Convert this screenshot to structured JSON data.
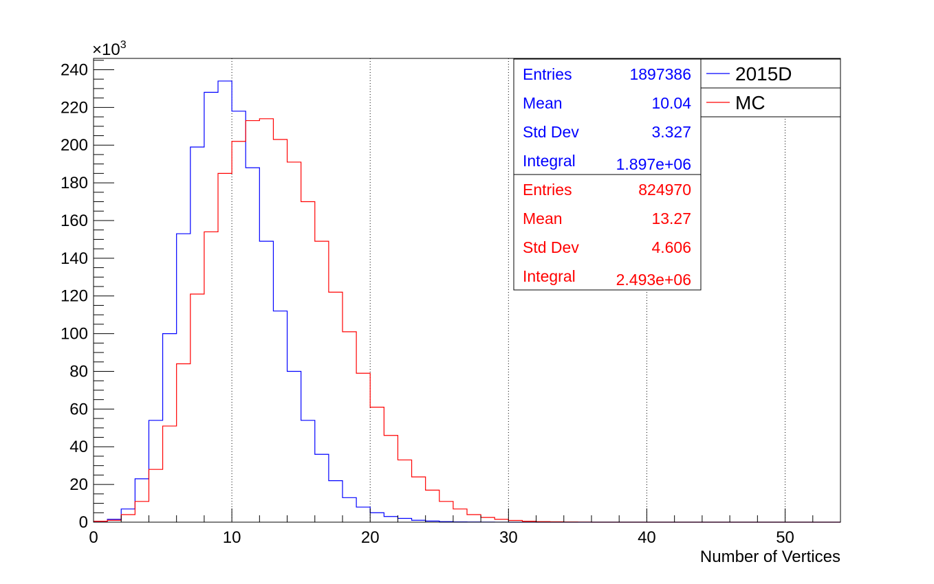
{
  "chart_data": {
    "type": "histogram",
    "xlabel": "Number of Vertices",
    "ylabel": "",
    "y_multiplier": "×10",
    "y_multiplier_exp": "3",
    "xlim": [
      0,
      54
    ],
    "ylim": [
      0,
      246
    ],
    "bin_width": 1,
    "x_ticks": [
      "0",
      "10",
      "20",
      "30",
      "40",
      "50"
    ],
    "y_ticks": [
      "0",
      "20",
      "40",
      "60",
      "80",
      "100",
      "120",
      "140",
      "160",
      "180",
      "200",
      "220",
      "240"
    ],
    "grid": "vertical",
    "legend_position": "top-right",
    "series": [
      {
        "name": "2015D",
        "color": "#0000ff",
        "values": [
          0.5,
          1.5,
          7,
          23,
          54,
          100,
          153,
          199,
          228,
          234,
          218,
          188,
          149,
          112,
          80,
          54,
          36,
          22,
          13,
          8,
          5,
          3,
          2,
          1,
          0.6,
          0.3,
          0.15,
          0.08,
          0.04,
          0.02,
          0.01,
          0,
          0,
          0,
          0,
          0,
          0,
          0,
          0,
          0,
          0,
          0,
          0,
          0,
          0,
          0,
          0,
          0,
          0,
          0,
          0,
          0,
          0,
          0
        ],
        "stats": {
          "entries_label": "Entries",
          "entries": "1897386",
          "mean_label": "Mean",
          "mean": "10.04",
          "std_label": "Std Dev",
          "std": "3.327",
          "integral_label": "Integral",
          "integral": "1.897e+06"
        }
      },
      {
        "name": "MC",
        "color": "#ff0000",
        "values": [
          0.5,
          1,
          4,
          11,
          28,
          51,
          84,
          121,
          154,
          185,
          202,
          213,
          214,
          203,
          191,
          170,
          149,
          122,
          101,
          79,
          61,
          46,
          33,
          24,
          17,
          11,
          7,
          4,
          2.5,
          1.5,
          0.9,
          0.5,
          0.3,
          0.2,
          0.1,
          0.05,
          0,
          0,
          0,
          0,
          0,
          0,
          0,
          0,
          0,
          0,
          0,
          0,
          0,
          0,
          0,
          0,
          0,
          0
        ],
        "stats": {
          "entries_label": "Entries",
          "entries": "824970",
          "mean_label": "Mean",
          "mean": "13.27",
          "std_label": "Std Dev",
          "std": "4.606",
          "integral_label": "Integral",
          "integral": "2.493e+06"
        }
      }
    ]
  }
}
